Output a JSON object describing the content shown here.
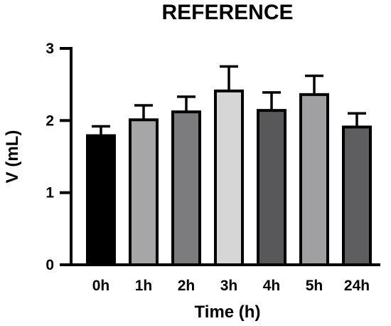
{
  "chart_data": {
    "type": "bar",
    "title": "REFERENCE",
    "xlabel": "Time (h)",
    "ylabel": "V (mL)",
    "ylim": [
      0,
      3
    ],
    "yticks": [
      "0",
      "1",
      "2",
      "3"
    ],
    "grid": false,
    "categories": [
      "0h",
      "1h",
      "2h",
      "3h",
      "4h",
      "5h",
      "24h"
    ],
    "values": [
      1.79,
      2.01,
      2.12,
      2.41,
      2.14,
      2.36,
      1.91
    ],
    "error_upper": [
      0.13,
      0.2,
      0.21,
      0.34,
      0.25,
      0.26,
      0.19
    ],
    "colors": [
      "#000000",
      "#a6a6a8",
      "#7c7c7e",
      "#d6d6d6",
      "#58585a",
      "#a0a0a2",
      "#5e5e60"
    ]
  }
}
